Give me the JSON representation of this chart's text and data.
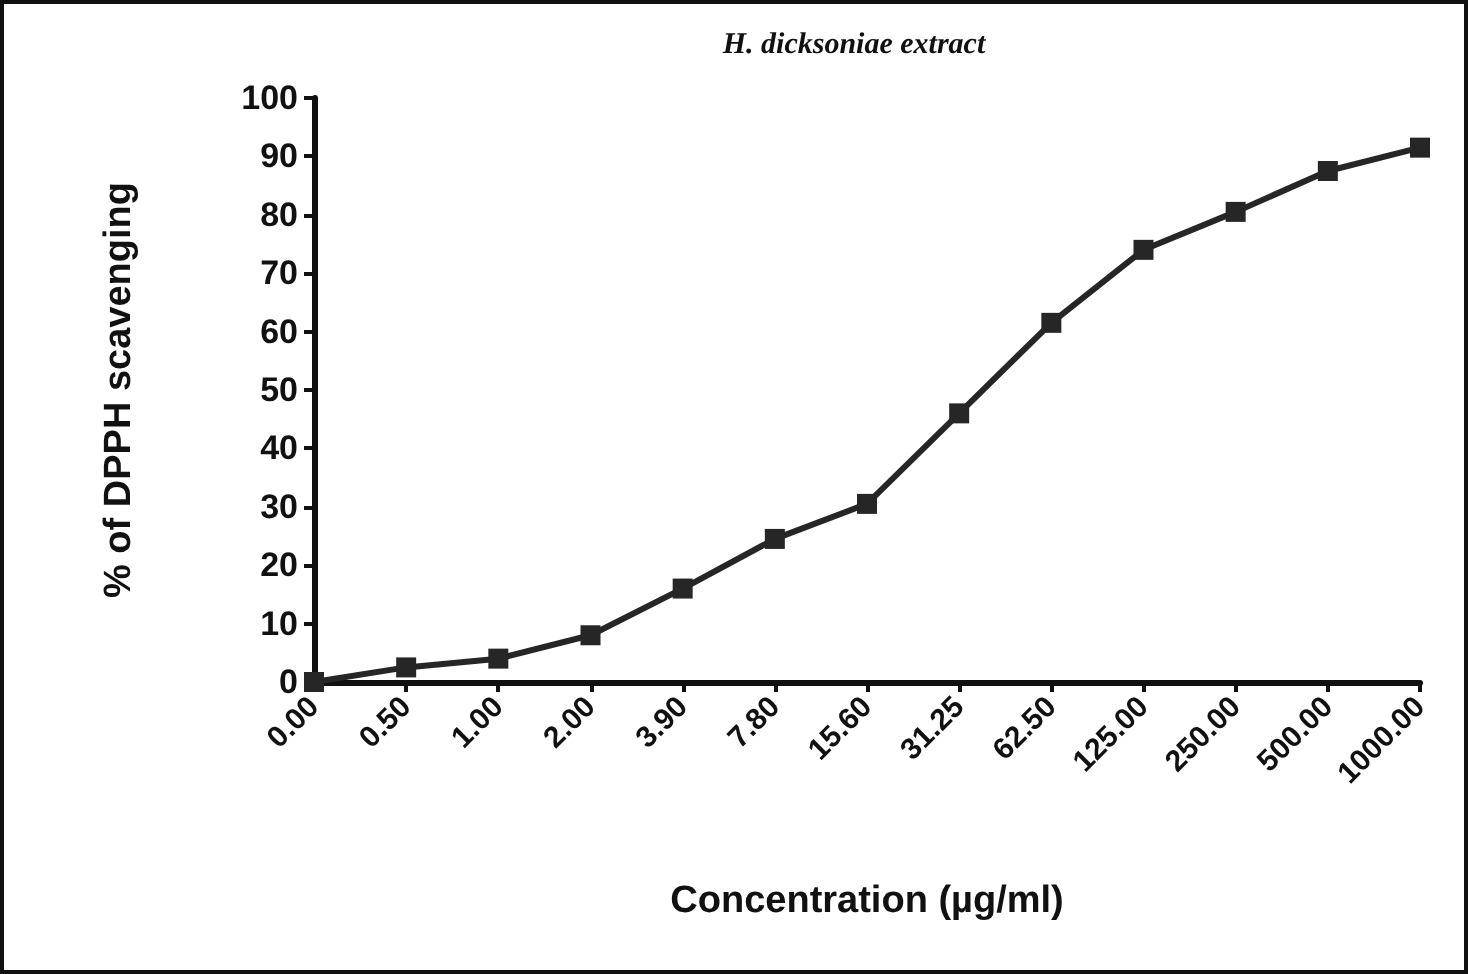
{
  "chart_data": {
    "type": "line",
    "title": "H. dicksoniae extract",
    "xlabel": "Concentration (µg/ml)",
    "ylabel": "% of DPPH scavenging",
    "categories": [
      "0.00",
      "0.50",
      "1.00",
      "2.00",
      "3.90",
      "7.80",
      "15.60",
      "31.25",
      "62.50",
      "125.00",
      "250.00",
      "500.00",
      "1000.00"
    ],
    "series": [
      {
        "color": "#262626",
        "values": [
          0,
          2.5,
          4,
          8,
          16,
          24.5,
          30.5,
          46,
          61.5,
          74,
          80.5,
          87.5,
          91.5
        ]
      }
    ],
    "ylim": [
      0,
      100
    ],
    "yticks": [
      0,
      10,
      20,
      30,
      40,
      50,
      60,
      70,
      80,
      90,
      100
    ],
    "marker": "square",
    "line_style": "solid"
  }
}
